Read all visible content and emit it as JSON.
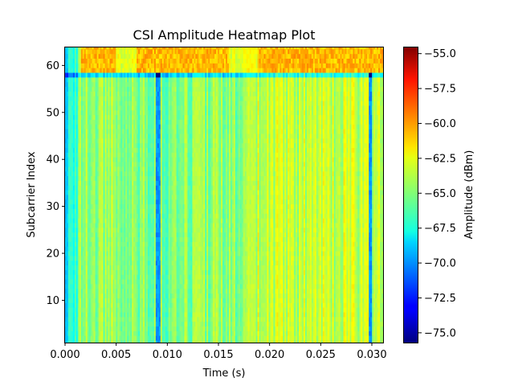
{
  "chart_data": {
    "type": "heatmap",
    "title": "CSI Amplitude Heatmap Plot",
    "xlabel": "Time (s)",
    "ylabel": "Subcarrier Index",
    "xlim": [
      0,
      0.0311
    ],
    "ylim": [
      1,
      64
    ],
    "x_ticks": [
      0.0,
      0.005,
      0.01,
      0.015,
      0.02,
      0.025,
      0.03
    ],
    "x_tick_labels": [
      "0.000",
      "0.005",
      "0.010",
      "0.015",
      "0.020",
      "0.025",
      "0.030"
    ],
    "y_ticks": [
      10,
      20,
      30,
      40,
      50,
      60
    ],
    "y_tick_labels": [
      "10",
      "20",
      "30",
      "40",
      "50",
      "60"
    ],
    "colormap": "jet",
    "colorbar": {
      "label": "Amplitude (dBm)",
      "min": -75.7,
      "max": -54.5,
      "ticks": [
        -75.0,
        -72.5,
        -70.0,
        -67.5,
        -65.0,
        -62.5,
        -60.0,
        -57.5,
        -55.0
      ],
      "tick_labels": [
        "−75.0",
        "−72.5",
        "−70.0",
        "−67.5",
        "−65.0",
        "−62.5",
        "−60.0",
        "−57.5",
        "−55.0"
      ]
    },
    "grid": false,
    "features": {
      "baseline_dbm": -64.5,
      "subcarrier_58_offset_dbm": -3.5,
      "top_band_subcarriers": [
        59,
        64
      ],
      "top_band_dbm": -61.0,
      "dip_times_s": [
        0.0091,
        0.0298
      ],
      "dip_dbm": -70.0
    }
  }
}
